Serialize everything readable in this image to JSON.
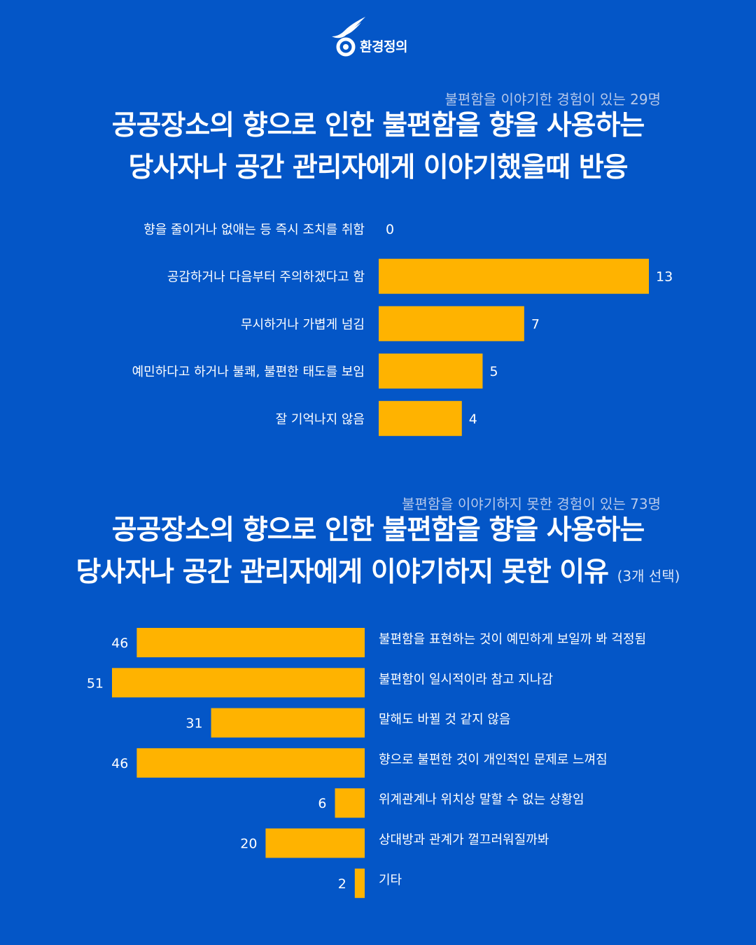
{
  "brand": {
    "name": "환경정의"
  },
  "colors": {
    "background": "#0456c7",
    "bar": "#ffb300",
    "text": "#ffffff",
    "subtitle": "#b6c8ea"
  },
  "chart_data": [
    {
      "type": "bar",
      "orientation": "horizontal",
      "subtitle": "불편함을 이야기한 경험이 있는 29명",
      "title_lines": [
        "공공장소의 향으로 인한 불편함을 향을 사용하는",
        "당사자나 공간 관리자에게 이야기했을때 반응"
      ],
      "note": "",
      "categories": [
        "향을 줄이거나 없애는 등 즉시 조치를 취함",
        "공감하거나 다음부터 주의하겠다고 함",
        "무시하거나 가볍게 넘김",
        "예민하다고 하거나 불쾌, 불편한 태도를 보임",
        "잘 기억나지 않음"
      ],
      "values": [
        0,
        13,
        7,
        5,
        4
      ],
      "xlim": [
        0,
        13
      ],
      "grid": false
    },
    {
      "type": "bar",
      "orientation": "horizontal",
      "subtitle": "불편함을 이야기하지 못한 경험이 있는 73명",
      "title_lines": [
        "공공장소의 향으로 인한 불편함을 향을 사용하는",
        "당사자나 공간 관리자에게 이야기하지 못한 이유"
      ],
      "note": "(3개 선택)",
      "categories": [
        "불편함을 표현하는 것이 예민하게 보일까 봐 걱정됨",
        "불편함이 일시적이라 참고 지나감",
        "말해도 바뀔 것 같지 않음",
        "향으로 불편한 것이 개인적인 문제로 느껴짐",
        "위계관계나 위치상 말할 수 없는 상황임",
        "상대방과 관계가 껄끄러워질까봐",
        "기타"
      ],
      "values": [
        46,
        51,
        31,
        46,
        6,
        20,
        2
      ],
      "xlim": [
        0,
        51
      ],
      "grid": false
    }
  ]
}
